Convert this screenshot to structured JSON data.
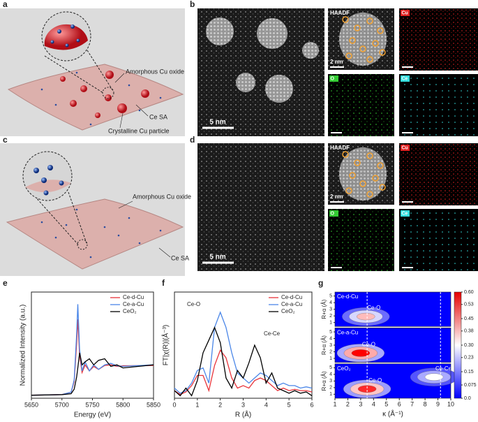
{
  "panel_labels": [
    "a",
    "b",
    "c",
    "d",
    "e",
    "f",
    "g"
  ],
  "schematic_a": {
    "labels": [
      "Amorphous Cu oxide",
      "Ce SA",
      "Crystalline Cu particle"
    ]
  },
  "schematic_c": {
    "labels": [
      "Amorphous Cu oxide",
      "Ce SA"
    ]
  },
  "micrograph_b": {
    "scale_main": "5 nm",
    "haadf": "HAADF",
    "scale_haadf": "2 nm",
    "maps": [
      "Cu",
      "O",
      "Ce"
    ]
  },
  "micrograph_d": {
    "scale_main": "5 nm",
    "haadf": "HAADF",
    "scale_haadf": "2 nm",
    "maps": [
      "Cu",
      "O",
      "Ce"
    ]
  },
  "chart_data": [
    {
      "type": "line",
      "xlabel": "Energy (eV)",
      "ylabel": "Normalized Intensity (a.u.)",
      "x": [
        5650,
        5700,
        5715,
        5720,
        5724,
        5726,
        5729,
        5733,
        5738,
        5745,
        5752,
        5760,
        5770,
        5780,
        5790,
        5800,
        5850
      ],
      "xlim": [
        5650,
        5850
      ],
      "xticks": [
        5650,
        5700,
        5750,
        5800,
        5850
      ],
      "ylim": [
        -0.1,
        3.4
      ],
      "legend": "upper right",
      "series": [
        {
          "name": "Ce-d-Cu",
          "color": "#e8333a",
          "values": [
            0,
            0.02,
            0.1,
            0.45,
            1.7,
            2.5,
            1.3,
            0.75,
            1.0,
            0.8,
            0.95,
            0.85,
            0.98,
            1.0,
            0.95,
            0.97,
            0.98
          ]
        },
        {
          "name": "Ce-a-Cu",
          "color": "#4a86e8",
          "values": [
            0,
            0.02,
            0.1,
            0.5,
            2.0,
            3.0,
            1.5,
            0.8,
            1.1,
            0.8,
            1.0,
            0.85,
            1.0,
            1.05,
            0.97,
            0.95,
            1.0
          ]
        },
        {
          "name": "CeO₂",
          "color": "#000000",
          "values": [
            0,
            0.02,
            0.05,
            0.2,
            0.6,
            0.9,
            1.4,
            1.0,
            1.1,
            1.2,
            1.0,
            1.15,
            1.2,
            0.95,
            1.0,
            0.9,
            1.0
          ]
        }
      ]
    },
    {
      "type": "line",
      "xlabel": "R (Å)",
      "ylabel": "FT|χ(R)|(Å⁻³)",
      "annotations": [
        "Ce-O",
        "Ce-Ce"
      ],
      "x": [
        0,
        0.25,
        0.5,
        0.75,
        1,
        1.25,
        1.5,
        1.75,
        2,
        2.25,
        2.5,
        2.75,
        3,
        3.25,
        3.5,
        3.75,
        4,
        4.25,
        4.5,
        4.75,
        5,
        5.25,
        5.5,
        5.75,
        6
      ],
      "xlim": [
        0,
        6
      ],
      "xticks": [
        0,
        1,
        2,
        3,
        4,
        5,
        6
      ],
      "ylim": [
        0,
        4.2
      ],
      "legend": "upper right",
      "series": [
        {
          "name": "Ce-d-Cu",
          "color": "#e8333a",
          "values": [
            0.3,
            0.15,
            0.25,
            0.5,
            0.9,
            0.9,
            0.3,
            1.3,
            1.9,
            1.6,
            0.8,
            0.4,
            0.5,
            0.4,
            0.7,
            0.8,
            0.7,
            0.5,
            0.3,
            0.4,
            0.3,
            0.35,
            0.3,
            0.3,
            0.25
          ]
        },
        {
          "name": "Ce-a-Cu",
          "color": "#4a86e8",
          "values": [
            0.4,
            0.2,
            0.3,
            0.6,
            1.1,
            1.2,
            0.6,
            2.8,
            3.4,
            2.8,
            1.8,
            1.0,
            0.8,
            0.6,
            0.8,
            1.0,
            0.9,
            0.7,
            0.5,
            0.6,
            0.5,
            0.5,
            0.4,
            0.45,
            0.4
          ]
        },
        {
          "name": "CeO₂",
          "color": "#000000",
          "values": [
            0.3,
            0.1,
            0.4,
            0.1,
            0.7,
            1.8,
            2.3,
            2.8,
            2.2,
            0.8,
            0.4,
            1.1,
            0.8,
            1.4,
            2.1,
            1.6,
            0.6,
            1.0,
            0.4,
            0.3,
            0.2,
            0.3,
            0.2,
            0.25,
            0.1
          ]
        }
      ]
    },
    {
      "type": "heatmap",
      "xlabel": "κ (Å⁻¹)",
      "ylabel": "R+α (Å)",
      "xlim": [
        1,
        10
      ],
      "xticks": [
        1,
        2,
        3,
        4,
        5,
        6,
        7,
        8,
        9,
        10
      ],
      "ylim": [
        0.4,
        5.6
      ],
      "yticks": [
        1,
        2,
        3,
        4,
        5
      ],
      "color_range": [
        0,
        0.6
      ],
      "colorbar_ticks": [
        {
          "value": 0.6,
          "label": "0.60"
        },
        0.53,
        0.45,
        0.38,
        {
          "value": 0.3,
          "label": "0.30"
        },
        0.23,
        0.15,
        0.075,
        {
          "value": 0,
          "label": "0.0"
        }
      ],
      "reference_lines": [
        3.5,
        9.2
      ],
      "panels": [
        {
          "name": "Ce-d-Cu",
          "annotations": [
            "Ce-O"
          ],
          "hotspots": [
            {
              "k": 3.4,
              "r": 1.9,
              "value": 0.38
            }
          ]
        },
        {
          "name": "Ce-a-Cu",
          "annotations": [
            "Ce-O"
          ],
          "hotspots": [
            {
              "k": 3.0,
              "r": 1.8,
              "value": 0.6
            }
          ]
        },
        {
          "name": "CeO₂",
          "annotations": [
            "Ce-O",
            "Ce-Ce"
          ],
          "hotspots": [
            {
              "k": 3.5,
              "r": 1.8,
              "value": 0.55
            },
            {
              "k": 8.7,
              "r": 3.6,
              "value": 0.3
            }
          ]
        }
      ]
    }
  ]
}
